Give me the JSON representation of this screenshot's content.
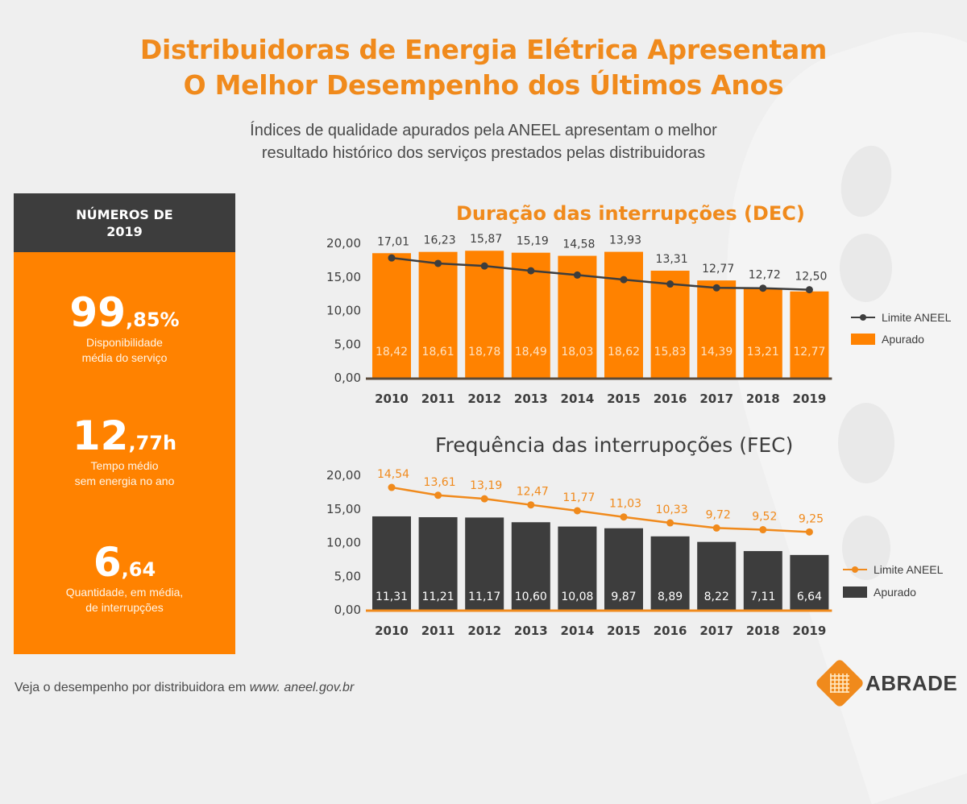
{
  "header": {
    "title_line1": "Distribuidoras de Energia Elétrica Apresentam",
    "title_line2": "O Melhor Desempenho dos Últimos Anos",
    "subtitle_line1": "Índices de qualidade apurados pela ANEEL apresentam o melhor",
    "subtitle_line2": "resultado histórico dos serviços prestados pelas distribuidoras"
  },
  "summary": {
    "header_line1": "NÚMEROS DE",
    "header_line2": "2019",
    "stats": [
      {
        "big": "99",
        "small": ",85%",
        "desc_line1": "Disponibilidade",
        "desc_line2": "média do serviço"
      },
      {
        "big": "12",
        "small": ",77h",
        "desc_line1": "Tempo médio",
        "desc_line2": "sem energia no ano"
      },
      {
        "big": "6",
        "small": ",64",
        "desc_line1": "Quantidade, em média,",
        "desc_line2": "de interrupções"
      }
    ]
  },
  "colors": {
    "orange": "#ff8200",
    "title_orange": "#f08a1c",
    "dark": "#3d3d3d"
  },
  "chart_data": [
    {
      "id": "dec",
      "type": "bar",
      "title": "Duração das interrupções (DEC)",
      "categories": [
        "2010",
        "2011",
        "2012",
        "2013",
        "2014",
        "2015",
        "2016",
        "2017",
        "2018",
        "2019"
      ],
      "yticks": [
        "20,00",
        "15,00",
        "10,00",
        "5,00",
        "0,00"
      ],
      "ylim": [
        0,
        20
      ],
      "series": [
        {
          "name": "Apurado",
          "type": "bar",
          "color": "#ff8200",
          "values": [
            18.42,
            18.61,
            18.78,
            18.49,
            18.03,
            18.62,
            15.83,
            14.39,
            13.21,
            12.77
          ],
          "labels": [
            "18,42",
            "18,61",
            "18,78",
            "18,49",
            "18,03",
            "18,62",
            "15,83",
            "14,39",
            "13,21",
            "12,77"
          ]
        },
        {
          "name": "Limite ANEEL",
          "type": "line",
          "color": "#3d3d3d",
          "values": [
            17.01,
            16.23,
            15.87,
            15.19,
            14.58,
            13.93,
            13.31,
            12.77,
            12.72,
            12.5
          ],
          "labels": [
            "17,01",
            "16,23",
            "15,87",
            "15,19",
            "14,58",
            "13,93",
            "13,31",
            "12,77",
            "12,72",
            "12,50"
          ]
        }
      ],
      "legend": [
        "Limite ANEEL",
        "Apurado"
      ],
      "legend_position": "right"
    },
    {
      "id": "fec",
      "type": "bar",
      "title": "Frequência das interrupoções (FEC)",
      "categories": [
        "2010",
        "2011",
        "2012",
        "2013",
        "2014",
        "2015",
        "2016",
        "2017",
        "2018",
        "2019"
      ],
      "yticks": [
        "20,00",
        "15,00",
        "10,00",
        "5,00",
        "0,00"
      ],
      "ylim": [
        0,
        20
      ],
      "series": [
        {
          "name": "Apurado",
          "type": "bar",
          "color": "#3d3d3d",
          "values": [
            11.31,
            11.21,
            11.17,
            10.6,
            10.08,
            9.87,
            8.89,
            8.22,
            7.11,
            6.64
          ],
          "labels": [
            "11,31",
            "11,21",
            "11,17",
            "10,60",
            "10,08",
            "9,87",
            "8,89",
            "8,22",
            "7,11",
            "6,64"
          ]
        },
        {
          "name": "Limite ANEEL",
          "type": "line",
          "color": "#f08a1c",
          "values": [
            14.54,
            13.61,
            13.19,
            12.47,
            11.77,
            11.03,
            10.33,
            9.72,
            9.52,
            9.25
          ],
          "labels": [
            "14,54",
            "13,61",
            "13,19",
            "12,47",
            "11,77",
            "11,03",
            "10,33",
            "9,72",
            "9,52",
            "9,25"
          ]
        }
      ],
      "legend": [
        "Limite ANEEL",
        "Apurado"
      ],
      "legend_position": "right"
    }
  ],
  "footer": {
    "note_prefix": "Veja o desempenho por distribuidora em ",
    "note_link": "www. aneel.gov.br",
    "logo_text": "ABRADE"
  }
}
